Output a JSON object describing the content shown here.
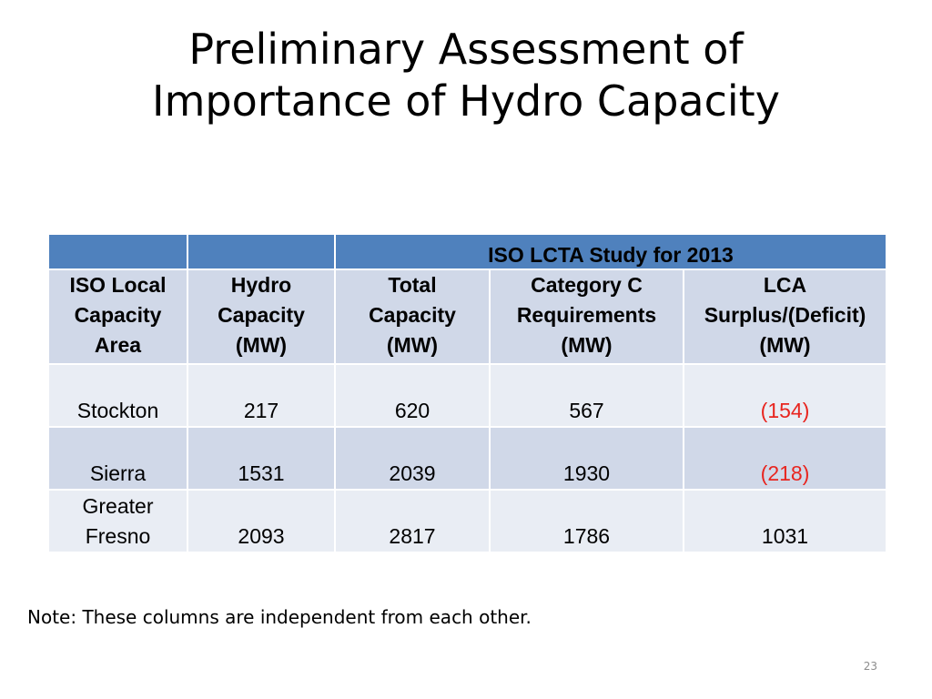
{
  "slide": {
    "title_line1": "Preliminary Assessment of",
    "title_line2": "Importance of Hydro Capacity",
    "note": "Note: These columns are independent from each other.",
    "page_number": "23"
  },
  "table": {
    "group_header": "ISO LCTA Study for 2013",
    "columns": [
      [
        "ISO Local",
        "Capacity",
        "Area"
      ],
      [
        "Hydro",
        "Capacity",
        "(MW)"
      ],
      [
        "Total",
        "Capacity",
        "(MW)"
      ],
      [
        "Category C",
        "Requirements",
        "(MW)"
      ],
      [
        "LCA",
        "Surplus/(Deficit)",
        "(MW)"
      ]
    ],
    "rows": [
      {
        "area": [
          "Stockton"
        ],
        "hydro": "217",
        "total": "620",
        "category_c": "567",
        "lca": "(154)"
      },
      {
        "area": [
          "Sierra"
        ],
        "hydro": "1531",
        "total": "2039",
        "category_c": "1930",
        "lca": "(218)"
      },
      {
        "area": [
          "Greater",
          "Fresno"
        ],
        "hydro": "2093",
        "total": "2817",
        "category_c": "1786",
        "lca": "1031"
      }
    ]
  },
  "colors": {
    "header_blue": "#4f81bd",
    "band_dark": "#d0d8e8",
    "band_light": "#e9edf4",
    "deficit_red": "#e8251f"
  }
}
